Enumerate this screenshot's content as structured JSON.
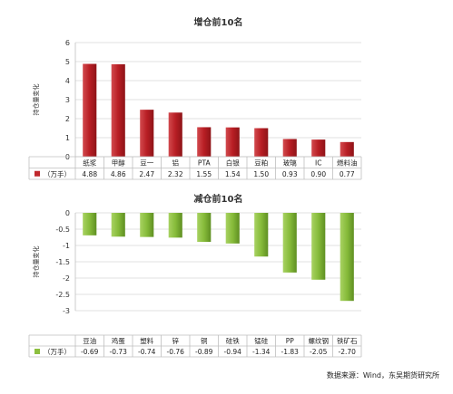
{
  "chart_data": [
    {
      "type": "bar",
      "title": "增仓前10名",
      "ylabel": "持仓量变化",
      "ylim": [
        0,
        6
      ],
      "yticks": [
        0,
        1,
        2,
        3,
        4,
        5,
        6
      ],
      "categories": [
        "纸浆",
        "甲醇",
        "豆一",
        "铝",
        "PTA",
        "白银",
        "豆粕",
        "玻璃",
        "IC",
        "燃料油"
      ],
      "series": [
        {
          "name": "（万手）",
          "values": [
            4.88,
            4.86,
            2.47,
            2.32,
            1.55,
            1.54,
            1.5,
            0.93,
            0.9,
            0.77
          ],
          "labels": [
            "4.88",
            "4.86",
            "2.47",
            "2.32",
            "1.55",
            "1.54",
            "1.50",
            "0.93",
            "0.90",
            "0.77"
          ],
          "color": "#c0282d"
        }
      ],
      "grid": true,
      "legend": "table-left"
    },
    {
      "type": "bar",
      "title": "减仓前10名",
      "ylabel": "持仓量变化",
      "ylim": [
        -3,
        0
      ],
      "yticks": [
        0,
        -0.5,
        -1,
        -1.5,
        -2,
        -2.5,
        -3
      ],
      "yticklabels": [
        "0",
        "-0.5",
        "-1",
        "-1.5",
        "-2",
        "-2.5",
        "-3"
      ],
      "categories": [
        "豆油",
        "鸡蛋",
        "塑料",
        "锌",
        "铜",
        "硅铁",
        "锰硅",
        "PP",
        "螺纹钢",
        "铁矿石"
      ],
      "series": [
        {
          "name": "（万手）",
          "values": [
            -0.69,
            -0.73,
            -0.74,
            -0.76,
            -0.89,
            -0.94,
            -1.34,
            -1.83,
            -2.05,
            -2.7
          ],
          "labels": [
            "-0.69",
            "-0.73",
            "-0.74",
            "-0.76",
            "-0.89",
            "-0.94",
            "-1.34",
            "-1.83",
            "-2.05",
            "-2.70"
          ],
          "color": "#8cbf3f"
        }
      ],
      "grid": true,
      "legend": "table-left"
    }
  ],
  "source": "数据来源：Wind，东吴期货研究所"
}
